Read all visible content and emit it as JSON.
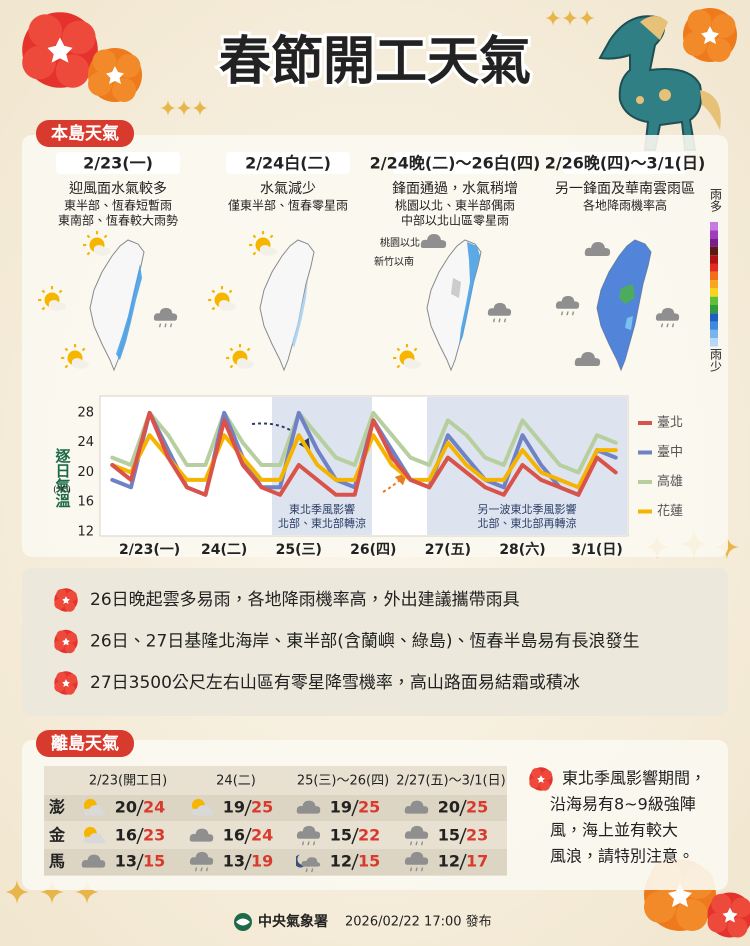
{
  "title": "春節開工天氣",
  "main_island": {
    "heading": "本島天氣",
    "panels": [
      {
        "date": "2/23(一)",
        "summary": "迎風面水氣較多",
        "details": [
          "東半部、恆春短暫雨",
          "東南部、恆春較大雨勢"
        ]
      },
      {
        "date": "2/24白(二)",
        "summary": "水氣減少",
        "details": [
          "僅東半部、恆春零星雨"
        ]
      },
      {
        "date": "2/24晚(二)〜26白(四)",
        "summary": "鋒面通過，水氣稍增",
        "details": [
          "桃園以北、東半部偶雨",
          "中部以北山區零星雨"
        ],
        "map_labels": [
          "桃園以北",
          "新竹以南"
        ]
      },
      {
        "date": "2/26晚(四)〜3/1(日)",
        "summary": "另一鋒面及華南雲雨區",
        "details": [
          "各地降雨機率高"
        ]
      }
    ],
    "rain_scale": {
      "top": "雨多",
      "bottom": "雨少"
    }
  },
  "chart_data": {
    "type": "line",
    "ylabel": "逐日氣溫",
    "yunit": "(°C)",
    "categories": [
      null,
      null,
      "2/23(一)",
      null,
      null,
      null,
      "24(二)",
      null,
      null,
      null,
      "25(三)",
      null,
      null,
      null,
      "26(四)",
      null,
      null,
      null,
      "27(五)",
      null,
      null,
      null,
      "28(六)",
      null,
      null,
      null,
      "3/1(日)",
      null
    ],
    "series": [
      {
        "name": "臺北",
        "color": "#d9534a",
        "values": [
          21,
          19,
          28,
          22,
          18,
          17,
          27,
          21,
          18,
          17,
          21,
          19,
          17,
          17,
          27,
          22,
          19,
          18,
          22,
          20,
          18,
          17,
          21,
          19,
          18,
          17,
          22,
          20
        ]
      },
      {
        "name": "臺中",
        "color": "#6f82c6",
        "values": [
          19,
          18,
          28,
          23,
          18,
          17,
          28,
          22,
          18,
          18,
          28,
          23,
          19,
          18,
          27,
          23,
          19,
          18,
          25,
          22,
          19,
          18,
          25,
          21,
          18,
          17,
          23,
          22
        ]
      },
      {
        "name": "高雄",
        "color": "#b7cf9f",
        "values": [
          22,
          21,
          28,
          25,
          21,
          21,
          28,
          24,
          21,
          21,
          28,
          25,
          22,
          21,
          28,
          25,
          22,
          21,
          27,
          25,
          22,
          21,
          27,
          24,
          21,
          20,
          25,
          24
        ]
      },
      {
        "name": "花蓮",
        "color": "#f4b400",
        "values": [
          21,
          20,
          25,
          22,
          19,
          19,
          25,
          22,
          19,
          19,
          25,
          21,
          19,
          19,
          25,
          21,
          19,
          19,
          24,
          21,
          19,
          19,
          23,
          20,
          19,
          18,
          23,
          23
        ]
      }
    ],
    "ylim": [
      12,
      30
    ],
    "yticks": [
      12,
      16,
      20,
      24,
      28
    ],
    "grid": false,
    "legend": "right",
    "annotations": [
      [
        "東北季風影響",
        "北部、東北部轉涼"
      ],
      [
        "另一波東北季風影響",
        "北部、東北部再轉涼"
      ]
    ]
  },
  "notes": [
    "26日晚起雲多易雨，各地降雨機率高，外出建議攜帶雨具",
    "26日、27日基隆北海岸、東半部(含蘭嶼、綠島)、恆春半島易有長浪發生",
    "27日3500公尺左右山區有零星降雪機率，高山路面易結霜或積冰"
  ],
  "outer_islands": {
    "heading": "離島天氣",
    "columns": [
      "2/23(開工日)",
      "24(二)",
      "25(三)〜26(四)",
      "2/27(五)〜3/1(日)"
    ],
    "rows": [
      {
        "name": "澎",
        "temps": [
          {
            "low": 20,
            "high": 24
          },
          {
            "low": 19,
            "high": 25
          },
          {
            "low": 19,
            "high": 25
          },
          {
            "low": 20,
            "high": 25
          }
        ]
      },
      {
        "name": "金",
        "temps": [
          {
            "low": 16,
            "high": 23
          },
          {
            "low": 16,
            "high": 24
          },
          {
            "low": 15,
            "high": 22
          },
          {
            "low": 15,
            "high": 23
          }
        ]
      },
      {
        "name": "馬",
        "temps": [
          {
            "low": 13,
            "high": 15
          },
          {
            "low": 13,
            "high": 19
          },
          {
            "low": 12,
            "high": 15
          },
          {
            "low": 12,
            "high": 17
          }
        ]
      }
    ],
    "advisory": [
      "東北季風影響期間，",
      "沿海易有8~9級強陣",
      "風，海上並有較大",
      "風浪，請特別注意。"
    ]
  },
  "footer": {
    "agency": "中央氣象署",
    "issued": "2026/02/22 17:00 發布"
  }
}
